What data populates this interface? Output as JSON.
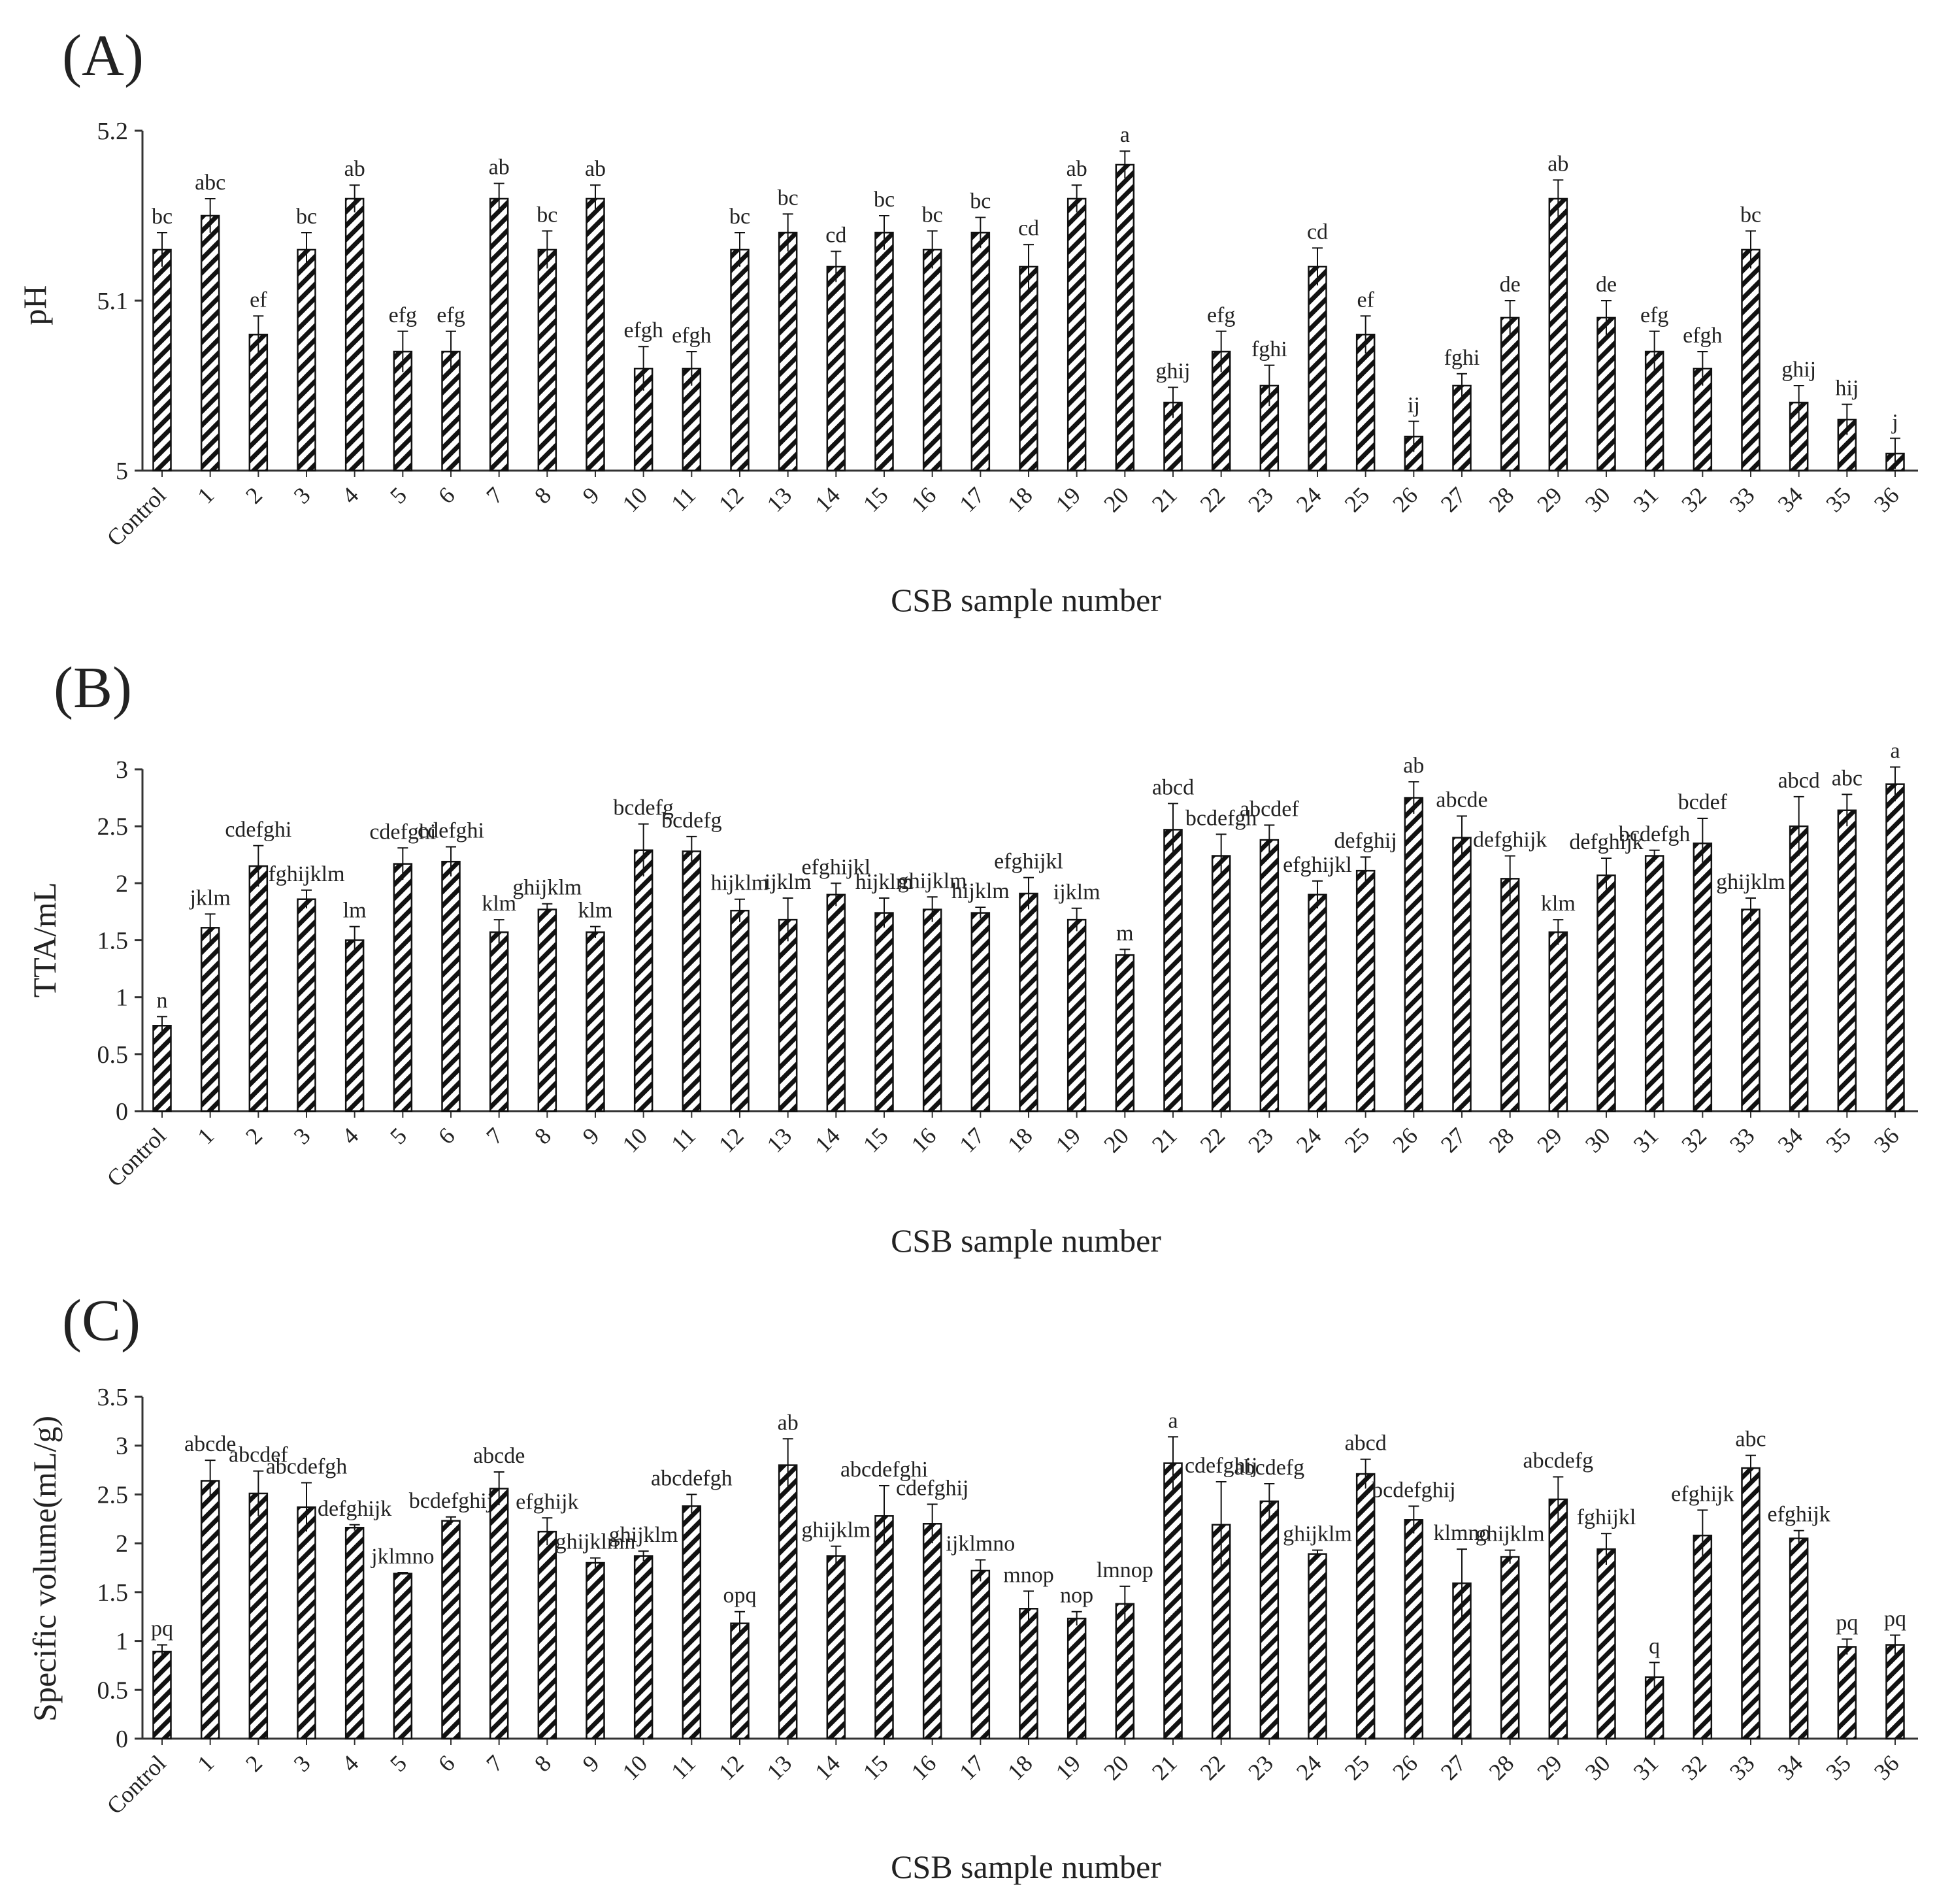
{
  "figure": {
    "panel_labels": [
      "(A)",
      "(B)",
      "(C)"
    ]
  },
  "colors": {
    "bar_stroke": "#111111",
    "hatch": "#111111",
    "axis": "#333333",
    "text": "#222222",
    "background": "#ffffff"
  },
  "chart_data": [
    {
      "type": "bar",
      "panel_label": "(A)",
      "title": "",
      "xlabel": "CSB sample number",
      "ylabel": "pH",
      "ylim": [
        5,
        5.2
      ],
      "yticks": [
        "5",
        "5.1",
        "5.2"
      ],
      "ytick_values": [
        5,
        5.1,
        5.2
      ],
      "categories": [
        "Control",
        "1",
        "2",
        "3",
        "4",
        "5",
        "6",
        "7",
        "8",
        "9",
        "10",
        "11",
        "12",
        "13",
        "14",
        "15",
        "16",
        "17",
        "18",
        "19",
        "20",
        "21",
        "22",
        "23",
        "24",
        "25",
        "26",
        "27",
        "28",
        "29",
        "30",
        "31",
        "32",
        "33",
        "34",
        "35",
        "36"
      ],
      "values": [
        5.13,
        5.15,
        5.08,
        5.13,
        5.16,
        5.07,
        5.07,
        5.16,
        5.13,
        5.16,
        5.06,
        5.06,
        5.13,
        5.14,
        5.12,
        5.14,
        5.13,
        5.14,
        5.12,
        5.16,
        5.18,
        5.04,
        5.07,
        5.05,
        5.12,
        5.08,
        5.02,
        5.05,
        5.09,
        5.16,
        5.09,
        5.07,
        5.06,
        5.13,
        5.04,
        5.03,
        5.01
      ],
      "errors": [
        0.01,
        0.01,
        0.011,
        0.01,
        0.008,
        0.012,
        0.012,
        0.009,
        0.011,
        0.008,
        0.013,
        0.01,
        0.01,
        0.011,
        0.009,
        0.01,
        0.011,
        0.009,
        0.013,
        0.008,
        0.008,
        0.009,
        0.012,
        0.012,
        0.011,
        0.011,
        0.009,
        0.007,
        0.01,
        0.011,
        0.01,
        0.012,
        0.01,
        0.011,
        0.01,
        0.009,
        0.009
      ],
      "letters": [
        "bc",
        "abc",
        "ef",
        "bc",
        "ab",
        "efg",
        "efg",
        "ab",
        "bc",
        "ab",
        "efgh",
        "efgh",
        "bc",
        "bc",
        "cd",
        "bc",
        "bc",
        "bc",
        "cd",
        "ab",
        "a",
        "ghij",
        "efg",
        "fghi",
        "cd",
        "ef",
        "ij",
        "fghi",
        "de",
        "ab",
        "de",
        "efg",
        "efgh",
        "bc",
        "ghij",
        "hij",
        "j"
      ],
      "grid": false,
      "legend": "none"
    },
    {
      "type": "bar",
      "panel_label": "(B)",
      "title": "",
      "xlabel": "CSB sample number",
      "ylabel": "TTA/mL",
      "ylim": [
        0,
        3
      ],
      "yticks": [
        "0",
        "0.5",
        "1",
        "1.5",
        "2",
        "2.5",
        "3"
      ],
      "ytick_values": [
        0,
        0.5,
        1,
        1.5,
        2,
        2.5,
        3
      ],
      "categories": [
        "Control",
        "1",
        "2",
        "3",
        "4",
        "5",
        "6",
        "7",
        "8",
        "9",
        "10",
        "11",
        "12",
        "13",
        "14",
        "15",
        "16",
        "17",
        "18",
        "19",
        "20",
        "21",
        "22",
        "23",
        "24",
        "25",
        "26",
        "27",
        "28",
        "29",
        "30",
        "31",
        "32",
        "33",
        "34",
        "35",
        "36"
      ],
      "values": [
        0.75,
        1.61,
        2.15,
        1.86,
        1.5,
        2.17,
        2.19,
        1.57,
        1.77,
        1.57,
        2.29,
        2.28,
        1.76,
        1.68,
        1.9,
        1.74,
        1.77,
        1.74,
        1.91,
        1.68,
        1.37,
        2.47,
        2.24,
        2.38,
        1.9,
        2.11,
        2.75,
        2.4,
        2.04,
        1.57,
        2.07,
        2.24,
        2.35,
        1.77,
        2.5,
        2.64,
        2.87
      ],
      "errors": [
        0.08,
        0.12,
        0.18,
        0.08,
        0.12,
        0.14,
        0.13,
        0.11,
        0.05,
        0.05,
        0.23,
        0.13,
        0.1,
        0.19,
        0.1,
        0.13,
        0.11,
        0.05,
        0.14,
        0.1,
        0.05,
        0.23,
        0.19,
        0.13,
        0.12,
        0.12,
        0.14,
        0.19,
        0.2,
        0.11,
        0.15,
        0.05,
        0.22,
        0.1,
        0.26,
        0.14,
        0.15
      ],
      "letters": [
        "n",
        "jklm",
        "cdefghi",
        "fghijklm",
        "lm",
        "cdefghi",
        "cdefghi",
        "klm",
        "ghijklm",
        "klm",
        "bcdefg",
        "bcdefg",
        "hijklm",
        "ijklm",
        "efghijkl",
        "hijklm",
        "ghijklm",
        "hijklm",
        "efghijkl",
        "ijklm",
        "m",
        "abcd",
        "bcdefgh",
        "abcdef",
        "efghijkl",
        "defghij",
        "ab",
        "abcde",
        "defghijk",
        "klm",
        "defghijk",
        "bcdefgh",
        "bcdef",
        "ghijklm",
        "abcd",
        "abc",
        "a"
      ],
      "grid": false,
      "legend": "none"
    },
    {
      "type": "bar",
      "panel_label": "(C)",
      "title": "",
      "xlabel": "CSB sample number",
      "ylabel": "Specific volume(mL/g)",
      "ylim": [
        0,
        3.5
      ],
      "yticks": [
        "0",
        "0.5",
        "1",
        "1.5",
        "2",
        "2.5",
        "3",
        "3.5"
      ],
      "ytick_values": [
        0,
        0.5,
        1,
        1.5,
        2,
        2.5,
        3,
        3.5
      ],
      "categories": [
        "Control",
        "1",
        "2",
        "3",
        "4",
        "5",
        "6",
        "7",
        "8",
        "9",
        "10",
        "11",
        "12",
        "13",
        "14",
        "15",
        "16",
        "17",
        "18",
        "19",
        "20",
        "21",
        "22",
        "23",
        "24",
        "25",
        "26",
        "27",
        "28",
        "29",
        "30",
        "31",
        "32",
        "33",
        "34",
        "35",
        "36"
      ],
      "values": [
        0.89,
        2.64,
        2.51,
        2.37,
        2.16,
        1.69,
        2.23,
        2.56,
        2.12,
        1.8,
        1.87,
        2.38,
        1.18,
        2.8,
        1.87,
        2.28,
        2.2,
        1.72,
        1.33,
        1.23,
        1.38,
        2.82,
        2.19,
        2.43,
        1.89,
        2.71,
        2.24,
        1.59,
        1.86,
        2.45,
        1.94,
        0.63,
        2.08,
        2.77,
        2.05,
        0.94,
        0.96
      ],
      "errors": [
        0.07,
        0.21,
        0.23,
        0.25,
        0.03,
        0.01,
        0.04,
        0.17,
        0.14,
        0.05,
        0.05,
        0.12,
        0.12,
        0.27,
        0.1,
        0.31,
        0.2,
        0.11,
        0.18,
        0.07,
        0.18,
        0.27,
        0.44,
        0.18,
        0.04,
        0.15,
        0.14,
        0.35,
        0.07,
        0.23,
        0.16,
        0.15,
        0.26,
        0.13,
        0.08,
        0.08,
        0.1
      ],
      "letters": [
        "pq",
        "abcde",
        "abcdef",
        "abcdefgh",
        "defghijk",
        "jklmno",
        "bcdefghij",
        "abcde",
        "efghijk",
        "ghijklmn",
        "ghijklm",
        "abcdefgh",
        "opq",
        "ab",
        "ghijklm",
        "abcdefghi",
        "cdefghij",
        "ijklmno",
        "mnop",
        "nop",
        "lmnop",
        "a",
        "cdefghij",
        "abcdefg",
        "ghijklm",
        "abcd",
        "bcdefghij",
        "klmno",
        "ghijklm",
        "abcdefg",
        "fghijkl",
        "q",
        "efghijk",
        "abc",
        "efghijk",
        "pq",
        "pq"
      ],
      "grid": false,
      "legend": "none"
    }
  ]
}
